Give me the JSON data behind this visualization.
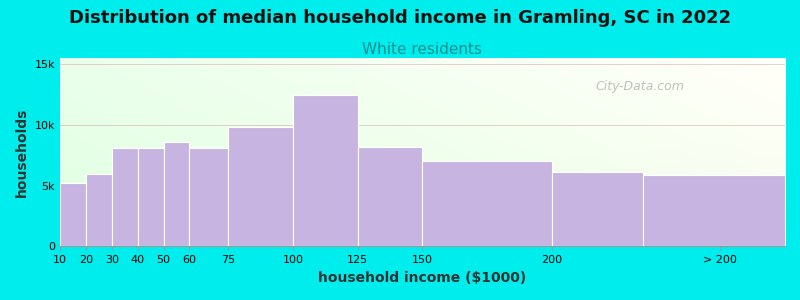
{
  "title": "Distribution of median household income in Gramling, SC in 2022",
  "subtitle": "White residents",
  "xlabel": "household income ($1000)",
  "ylabel": "households",
  "background_color": "#00EDED",
  "bar_color": "#c8b4e0",
  "bar_edge_color": "#ffffff",
  "categories": [
    "10",
    "20",
    "30",
    "40",
    "50",
    "60",
    "75",
    "100",
    "125",
    "150",
    "200",
    "> 200"
  ],
  "left_edges": [
    10,
    20,
    30,
    40,
    50,
    60,
    75,
    100,
    125,
    150,
    200,
    235
  ],
  "bar_widths": [
    10,
    10,
    10,
    10,
    10,
    15,
    25,
    25,
    25,
    50,
    35,
    55
  ],
  "values": [
    5200,
    6000,
    8100,
    8100,
    8600,
    8100,
    9800,
    12500,
    8200,
    7000,
    6100,
    5900
  ],
  "yticks": [
    0,
    5000,
    10000,
    15000
  ],
  "ytick_labels": [
    "0",
    "5k",
    "10k",
    "15k"
  ],
  "ylim": [
    0,
    15500
  ],
  "xlim": [
    10,
    290
  ],
  "xtick_positions": [
    10,
    20,
    30,
    40,
    50,
    60,
    75,
    100,
    125,
    150,
    200,
    265
  ],
  "xtick_labels": [
    "10",
    "20",
    "30",
    "40",
    "50",
    "60",
    "75",
    "100",
    "125",
    "150",
    "200",
    "> 200"
  ],
  "title_fontsize": 13,
  "subtitle_fontsize": 11,
  "subtitle_color": "#1a9090",
  "axis_label_fontsize": 10,
  "tick_fontsize": 8,
  "watermark_text": "City-Data.com",
  "watermark_color": "#b0b8b0",
  "grid_color": "#d8a0a0",
  "plot_bg_left_color": "#e0ffe0",
  "plot_bg_right_color": "#f8f8f0"
}
